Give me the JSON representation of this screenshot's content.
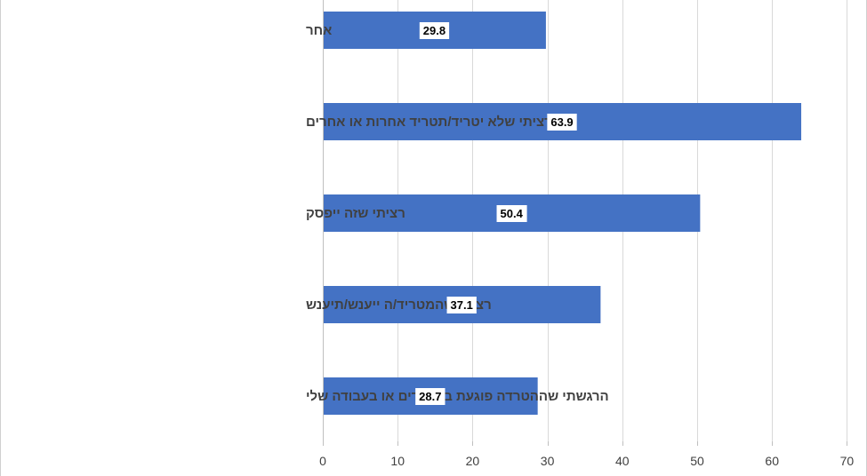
{
  "chart_data": {
    "type": "bar",
    "orientation": "horizontal",
    "title": "",
    "xlabel": "",
    "ylabel": "",
    "categories": [
      "אחר",
      "רציתי שלא יטריד/תטריד אחרות או אחרים",
      "רציתי שזה ייפסק",
      "רציתי שהמטריד/ה ייענש/תיענש",
      "הרגשתי שההטרדה פוגעת בלימודים או בעבודה שלי"
    ],
    "values": [
      29.8,
      63.9,
      50.4,
      37.1,
      28.7
    ],
    "data_labels": [
      "29.8",
      "63.9",
      "50.4",
      "37.1",
      "28.7"
    ],
    "xlim": [
      0,
      70
    ],
    "xticks": [
      0,
      10,
      20,
      30,
      40,
      50,
      60,
      70
    ],
    "tick_labels": [
      "0",
      "10",
      "20",
      "30",
      "40",
      "50",
      "60",
      "70"
    ],
    "grid": true,
    "legend": "none",
    "bar_color": "#4472C4",
    "grid_color": "#d9d9d9",
    "axis_color": "#bfbfbf",
    "label_color": "#404040"
  }
}
